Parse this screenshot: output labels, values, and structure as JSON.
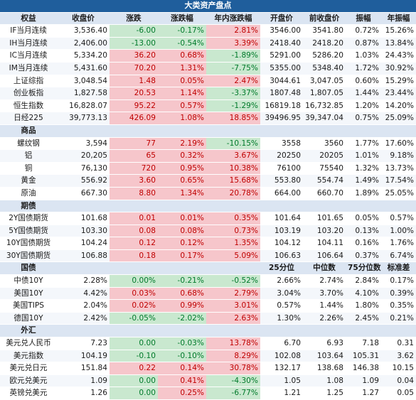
{
  "title": "大类资产盘点",
  "colors": {
    "banner": "#1f5e9c",
    "section": "#dbe5f2",
    "positive_bg": "#f6c6cb",
    "positive_fg": "#c00000",
    "negative_bg": "#c9e8cf",
    "negative_fg": "#007a2a"
  },
  "sections": [
    {
      "name": "equity",
      "headers": [
        "权益",
        "收盘价",
        "涨跌",
        "涨跌幅",
        "年内涨跌幅",
        "开盘价",
        "前收盘价",
        "振幅",
        "年振幅"
      ],
      "header_is_section": true,
      "rows": [
        {
          "name": "IF当月连续",
          "close": "3,536.40",
          "chg": "-6.00",
          "pct": "-0.17%",
          "ytd": "2.81%",
          "open": "3546.00",
          "prev": "3541.80",
          "amp": "0.72%",
          "yamp": "15.26%"
        },
        {
          "name": "IH当月连续",
          "close": "2,406.00",
          "chg": "-13.00",
          "pct": "-0.54%",
          "ytd": "3.39%",
          "open": "2418.40",
          "prev": "2418.20",
          "amp": "0.87%",
          "yamp": "13.84%"
        },
        {
          "name": "IC当月连续",
          "close": "5,334.20",
          "chg": "36.20",
          "pct": "0.68%",
          "ytd": "-1.89%",
          "open": "5291.00",
          "prev": "5286.20",
          "amp": "1.03%",
          "yamp": "24.43%"
        },
        {
          "name": "IM当月连续",
          "close": "5,431.60",
          "chg": "70.20",
          "pct": "1.31%",
          "ytd": "-7.75%",
          "open": "5355.00",
          "prev": "5348.40",
          "amp": "1.72%",
          "yamp": "30.92%"
        },
        {
          "name": "上证综指",
          "close": "3,048.54",
          "chg": "1.48",
          "pct": "0.05%",
          "ytd": "2.47%",
          "open": "3044.61",
          "prev": "3,047.05",
          "amp": "0.60%",
          "yamp": "15.29%"
        },
        {
          "name": "创业板指",
          "close": "1,827.58",
          "chg": "20.53",
          "pct": "1.14%",
          "ytd": "-3.37%",
          "open": "1807.48",
          "prev": "1,807.05",
          "amp": "1.44%",
          "yamp": "23.44%"
        },
        {
          "name": "恒生指数",
          "close": "16,828.07",
          "chg": "95.22",
          "pct": "0.57%",
          "ytd": "-1.29%",
          "open": "16819.18",
          "prev": "16,732.85",
          "amp": "1.20%",
          "yamp": "14.20%"
        },
        {
          "name": "日经225",
          "close": "39,773.13",
          "chg": "426.09",
          "pct": "1.08%",
          "ytd": "18.85%",
          "open": "39496.95",
          "prev": "39,347.04",
          "amp": "0.75%",
          "yamp": "25.09%"
        }
      ]
    },
    {
      "name": "commodities",
      "title": "商品",
      "rows": [
        {
          "name": "螺纹钢",
          "close": "3,594",
          "chg": "77",
          "pct": "2.19%",
          "ytd": "-10.15%",
          "open": "3558",
          "prev": "3560",
          "amp": "1.77%",
          "yamp": "17.60%"
        },
        {
          "name": "铝",
          "close": "20,205",
          "chg": "65",
          "pct": "0.32%",
          "ytd": "3.67%",
          "open": "20250",
          "prev": "20205",
          "amp": "1.01%",
          "yamp": "9.18%"
        },
        {
          "name": "铜",
          "close": "76,130",
          "chg": "720",
          "pct": "0.95%",
          "ytd": "10.38%",
          "open": "76100",
          "prev": "75540",
          "amp": "1.32%",
          "yamp": "13.73%"
        },
        {
          "name": "黄金",
          "close": "556.92",
          "chg": "3.60",
          "pct": "0.65%",
          "ytd": "15.68%",
          "open": "553.80",
          "prev": "554.74",
          "amp": "1.49%",
          "yamp": "17.54%"
        },
        {
          "name": "原油",
          "close": "667.30",
          "chg": "8.80",
          "pct": "1.34%",
          "ytd": "20.78%",
          "open": "664.00",
          "prev": "660.70",
          "amp": "1.89%",
          "yamp": "25.05%"
        }
      ]
    },
    {
      "name": "futures",
      "title": "期债",
      "rows": [
        {
          "name": "2Y国债期货",
          "close": "101.68",
          "chg": "0.01",
          "pct": "0.01%",
          "ytd": "0.35%",
          "open": "101.64",
          "prev": "101.65",
          "amp": "0.05%",
          "yamp": "0.57%"
        },
        {
          "name": "5Y国债期货",
          "close": "103.30",
          "chg": "0.08",
          "pct": "0.08%",
          "ytd": "0.73%",
          "open": "103.19",
          "prev": "103.20",
          "amp": "0.13%",
          "yamp": "1.00%"
        },
        {
          "name": "10Y国债期货",
          "close": "104.24",
          "chg": "0.12",
          "pct": "0.12%",
          "ytd": "1.35%",
          "open": "104.12",
          "prev": "104.11",
          "amp": "0.16%",
          "yamp": "1.76%"
        },
        {
          "name": "30Y国债期货",
          "close": "106.88",
          "chg": "0.18",
          "pct": "0.17%",
          "ytd": "5.09%",
          "open": "106.63",
          "prev": "106.64",
          "amp": "0.37%",
          "yamp": "6.74%"
        }
      ]
    },
    {
      "name": "bonds",
      "title": "国债",
      "extra_headers": [
        "25分位",
        "中位数",
        "75分位数",
        "标准差"
      ],
      "rows": [
        {
          "name": "中债10Y",
          "close": "2.28%",
          "chg": "0.00%",
          "pct": "-0.21%",
          "ytd": "-0.52%",
          "open": "2.66%",
          "prev": "2.74%",
          "amp": "2.84%",
          "yamp": "0.17%"
        },
        {
          "name": "美国10Y",
          "close": "4.42%",
          "chg": "0.03%",
          "pct": "0.68%",
          "ytd": "2.79%",
          "open": "3.04%",
          "prev": "3.70%",
          "amp": "4.10%",
          "yamp": "0.39%"
        },
        {
          "name": "美国TIPS",
          "close": "2.04%",
          "chg": "0.02%",
          "pct": "0.99%",
          "ytd": "3.01%",
          "open": "0.57%",
          "prev": "1.44%",
          "amp": "1.80%",
          "yamp": "0.35%"
        },
        {
          "name": "德国10Y",
          "close": "2.42%",
          "chg": "-0.05%",
          "pct": "-2.02%",
          "ytd": "2.63%",
          "open": "1.30%",
          "prev": "2.26%",
          "amp": "2.45%",
          "yamp": "0.21%"
        }
      ]
    },
    {
      "name": "fx",
      "title": "外汇",
      "rows": [
        {
          "name": "美元兑人民币",
          "close": "7.23",
          "chg": "0.00",
          "pct": "-0.03%",
          "ytd": "13.78%",
          "open": "6.70",
          "prev": "6.93",
          "amp": "7.18",
          "yamp": "0.31"
        },
        {
          "name": "美元指数",
          "close": "104.19",
          "chg": "-0.10",
          "pct": "-0.10%",
          "ytd": "8.29%",
          "open": "102.08",
          "prev": "103.64",
          "amp": "105.31",
          "yamp": "3.62"
        },
        {
          "name": "美元兑日元",
          "close": "151.84",
          "chg": "0.22",
          "pct": "0.14%",
          "ytd": "30.78%",
          "open": "132.17",
          "prev": "138.68",
          "amp": "146.38",
          "yamp": "10.15"
        },
        {
          "name": "欧元兑美元",
          "close": "1.09",
          "chg": "0.00",
          "pct": "0.41%",
          "ytd": "-4.30%",
          "open": "1.05",
          "prev": "1.08",
          "amp": "1.09",
          "yamp": "0.04"
        },
        {
          "name": "英镑兑美元",
          "close": "1.26",
          "chg": "0.00",
          "pct": "0.25%",
          "ytd": "-6.77%",
          "open": "1.21",
          "prev": "1.25",
          "amp": "1.27",
          "yamp": "0.05"
        }
      ]
    }
  ]
}
